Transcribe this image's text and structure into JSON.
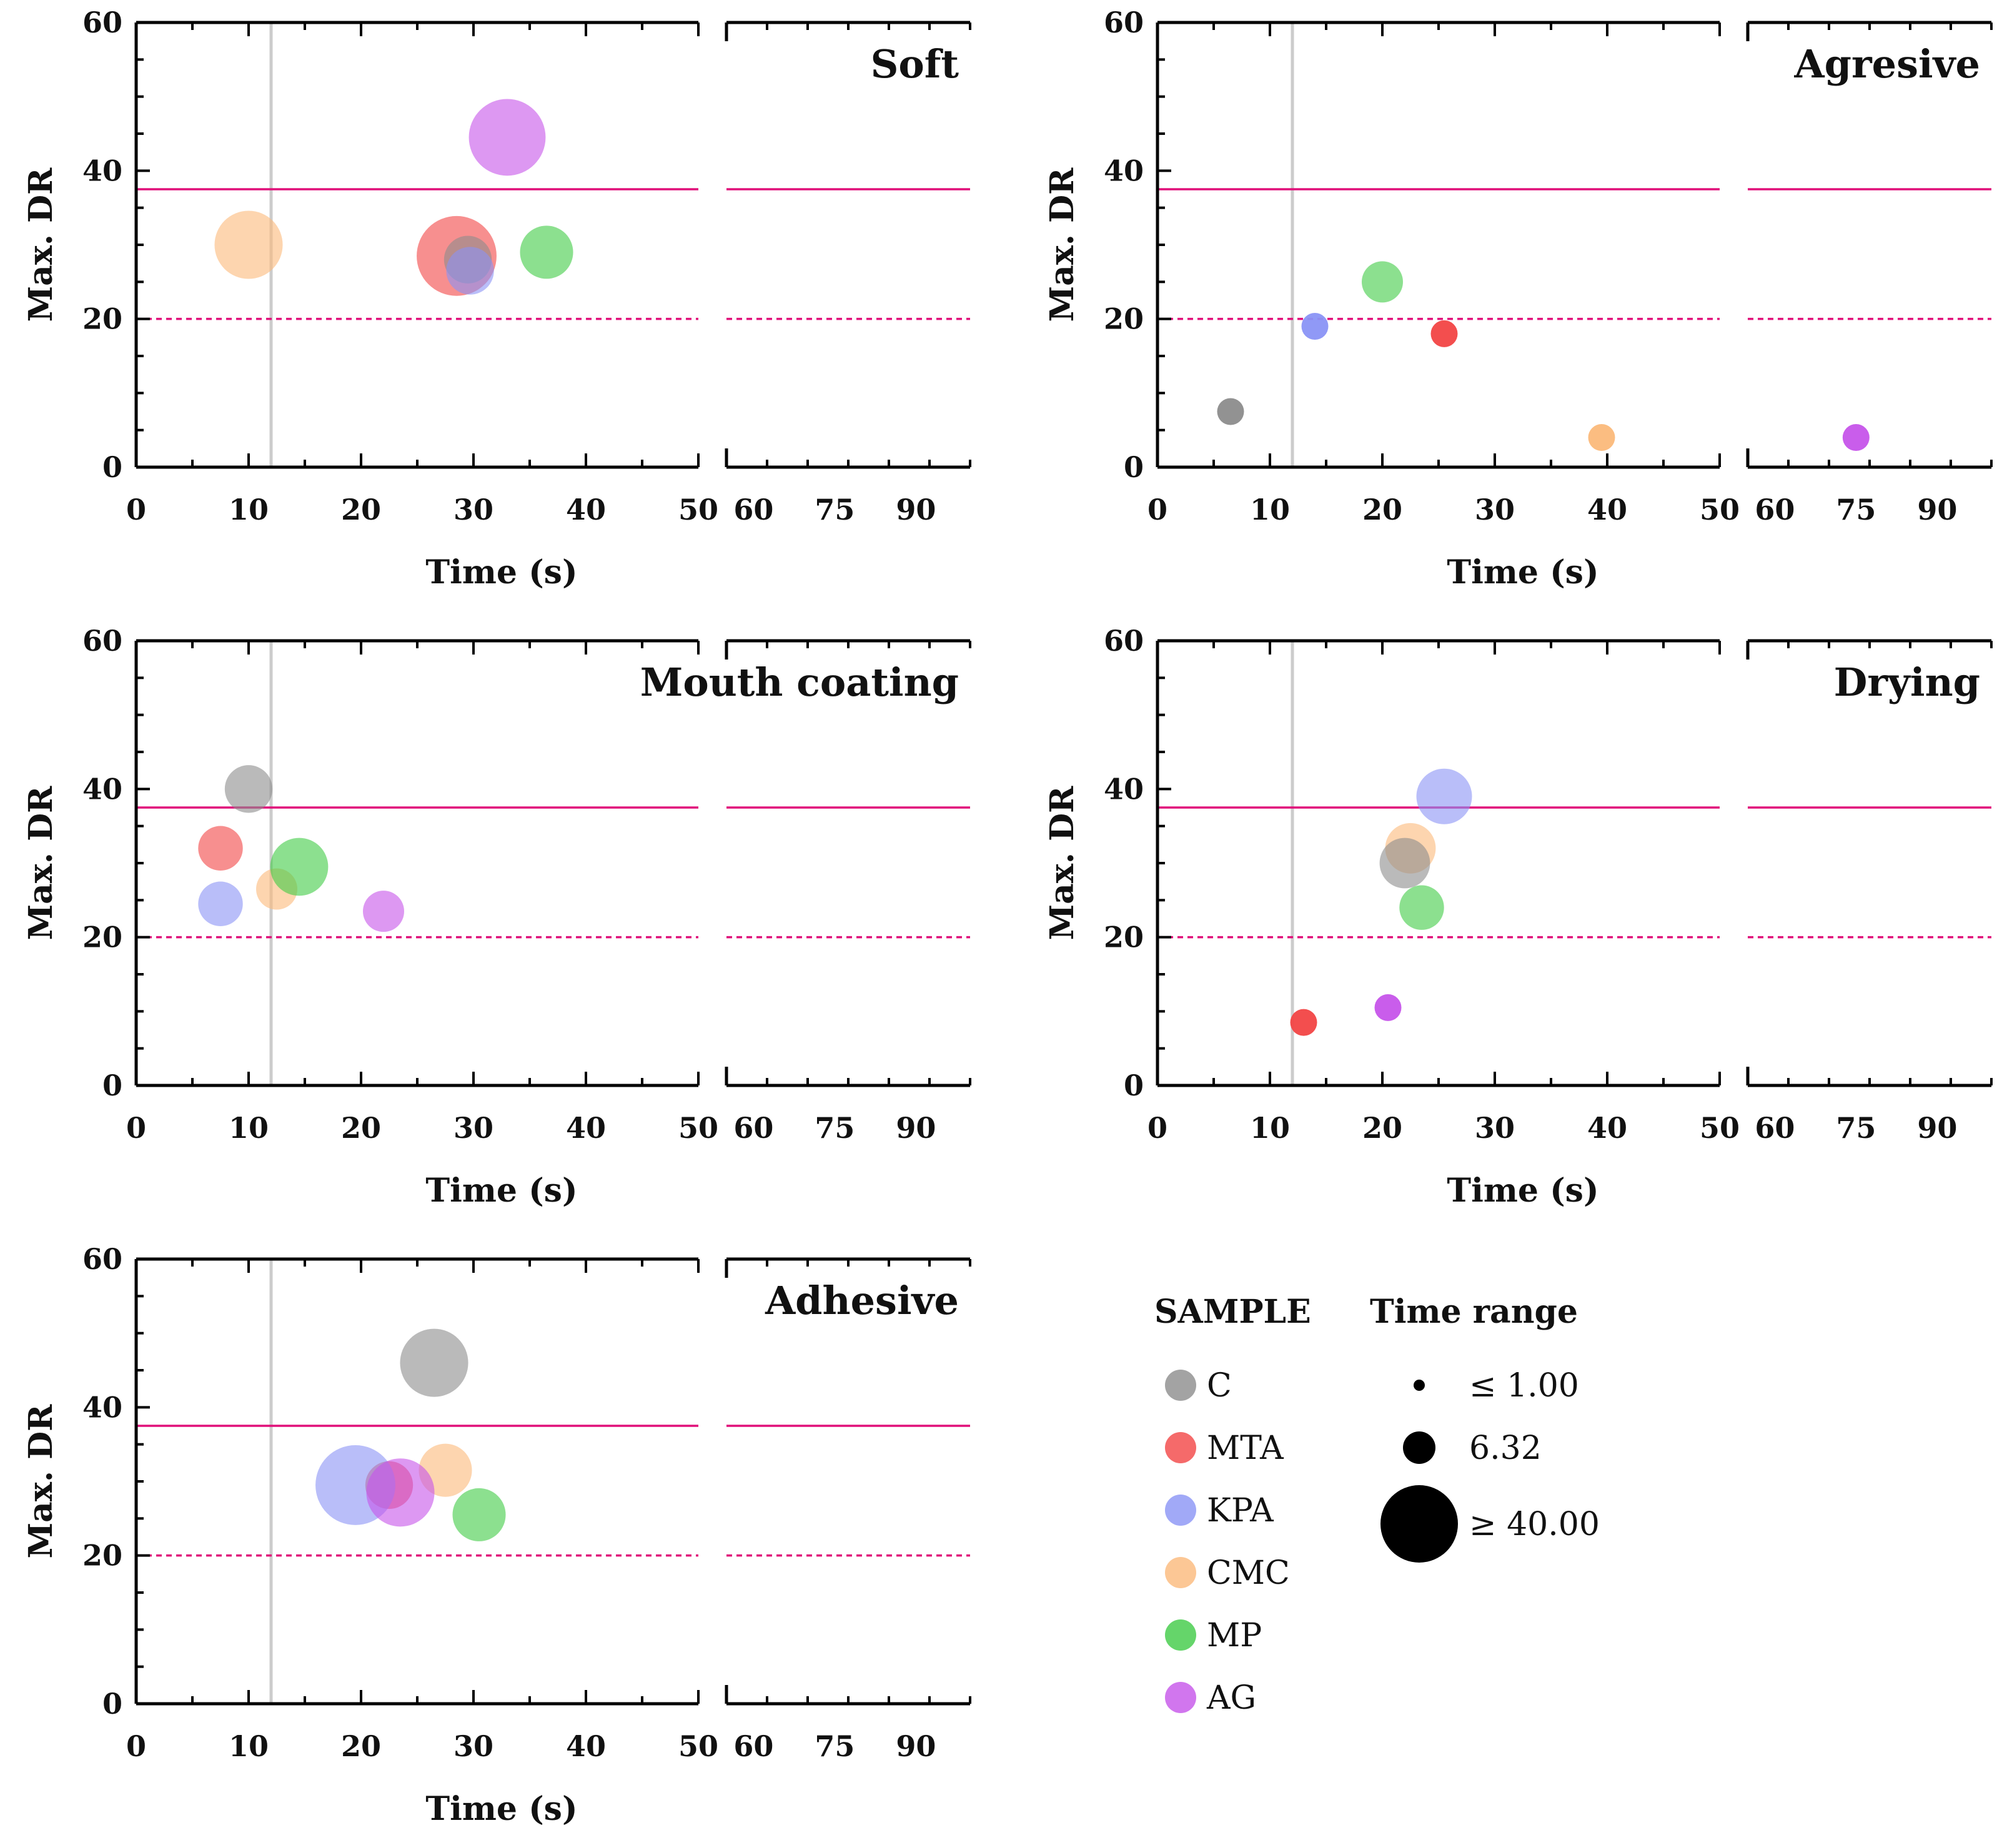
{
  "chart_data": {
    "type": "scatter",
    "style": "bubble",
    "x_unit_label": "Time (s)",
    "y_unit_label": "Max. DR",
    "xlim_main": [
      0,
      50
    ],
    "xticks_main": [
      "0",
      "10",
      "20",
      "30",
      "40",
      "50"
    ],
    "xticks_broken": [
      "60",
      "75",
      "90"
    ],
    "ylim": [
      0,
      60
    ],
    "yticks": [
      "0",
      "20",
      "40",
      "60"
    ],
    "reference_lines": {
      "vertical_x": 12,
      "solid_y": 37.5,
      "dashed_y": 20,
      "vertical_color": "#cccccc",
      "solid_color": "#e0107a",
      "dashed_color": "#e0107a"
    },
    "samples": [
      {
        "name": "C",
        "color": "#8c8c8c"
      },
      {
        "name": "MTA",
        "color": "#f24545"
      },
      {
        "name": "KPA",
        "color": "#8a93f5"
      },
      {
        "name": "CMC",
        "color": "#fbb97a"
      },
      {
        "name": "MP",
        "color": "#3fcb45"
      },
      {
        "name": "AG",
        "color": "#c654ea"
      }
    ],
    "size_legend": {
      "title": "Time range",
      "items": [
        {
          "label": "≤  1.00",
          "value": 1
        },
        {
          "label": "6.32",
          "value": 6.32
        },
        {
          "label": "≥  40.00",
          "value": 40
        }
      ]
    },
    "sample_legend_title": "SAMPLE",
    "panels": [
      {
        "title": "Soft",
        "points": [
          {
            "sample": "CMC",
            "x": 10,
            "y": 30,
            "size": 15
          },
          {
            "sample": "MTA",
            "x": 28.5,
            "y": 28.5,
            "size": 22
          },
          {
            "sample": "C",
            "x": 29.5,
            "y": 28,
            "size": 6
          },
          {
            "sample": "KPA",
            "x": 29.7,
            "y": 26.5,
            "size": 6
          },
          {
            "sample": "MP",
            "x": 36.5,
            "y": 29,
            "size": 8
          },
          {
            "sample": "AG",
            "x": 33,
            "y": 44.5,
            "size": 20
          }
        ]
      },
      {
        "title": "Agresive",
        "points": [
          {
            "sample": "C",
            "x": 6.5,
            "y": 7.5,
            "size": 1
          },
          {
            "sample": "KPA",
            "x": 14,
            "y": 19,
            "size": 1
          },
          {
            "sample": "MP",
            "x": 20,
            "y": 25,
            "size": 4
          },
          {
            "sample": "MTA",
            "x": 25.5,
            "y": 18,
            "size": 1
          },
          {
            "sample": "CMC",
            "x": 39.5,
            "y": 4,
            "size": 1
          },
          {
            "sample": "AG",
            "x": 75,
            "y": 4,
            "size": 1
          }
        ]
      },
      {
        "title": "Mouth coating",
        "points": [
          {
            "sample": "C",
            "x": 10,
            "y": 40,
            "size": 6
          },
          {
            "sample": "MTA",
            "x": 7.5,
            "y": 32,
            "size": 5
          },
          {
            "sample": "KPA",
            "x": 7.5,
            "y": 24.5,
            "size": 5
          },
          {
            "sample": "CMC",
            "x": 12.5,
            "y": 26.5,
            "size": 4
          },
          {
            "sample": "MP",
            "x": 14.5,
            "y": 29.5,
            "size": 10
          },
          {
            "sample": "AG",
            "x": 22,
            "y": 23.5,
            "size": 4
          }
        ]
      },
      {
        "title": "Drying",
        "points": [
          {
            "sample": "KPA",
            "x": 25.5,
            "y": 39,
            "size": 9
          },
          {
            "sample": "CMC",
            "x": 22.5,
            "y": 32,
            "size": 7
          },
          {
            "sample": "C",
            "x": 22,
            "y": 30,
            "size": 7
          },
          {
            "sample": "MP",
            "x": 23.5,
            "y": 24,
            "size": 5
          },
          {
            "sample": "MTA",
            "x": 13,
            "y": 8.5,
            "size": 1
          },
          {
            "sample": "AG",
            "x": 20.5,
            "y": 10.5,
            "size": 1
          }
        ]
      },
      {
        "title": "Adhesive",
        "points": [
          {
            "sample": "C",
            "x": 26.5,
            "y": 46,
            "size": 15
          },
          {
            "sample": "CMC",
            "x": 27.5,
            "y": 31.5,
            "size": 8
          },
          {
            "sample": "MTA",
            "x": 22.5,
            "y": 29.5,
            "size": 6
          },
          {
            "sample": "KPA",
            "x": 19.5,
            "y": 29.5,
            "size": 22
          },
          {
            "sample": "AG",
            "x": 23.5,
            "y": 28.5,
            "size": 15
          },
          {
            "sample": "MP",
            "x": 30.5,
            "y": 25.5,
            "size": 8
          }
        ]
      }
    ]
  }
}
